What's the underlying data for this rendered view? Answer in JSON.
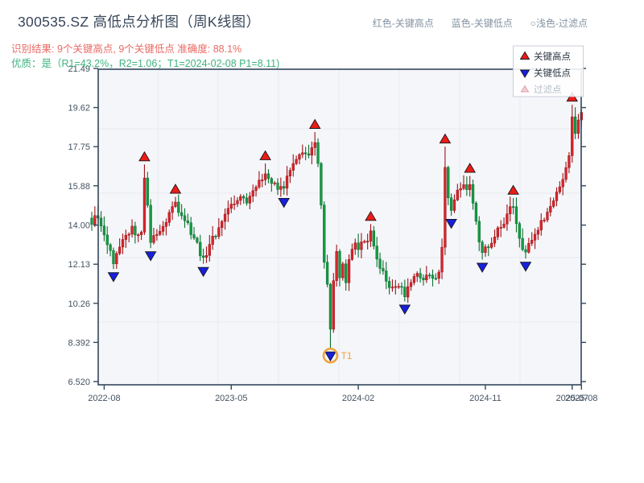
{
  "header": {
    "title": "300535.SZ 高低点分析图（周K线图）",
    "note_red": "红色-关键高点",
    "note_blue": "蓝色-关键低点",
    "note_light": "○浅色-过滤点",
    "result_line": "识别结果: 9个关键高点, 9个关键低点  准确度: 88.1%",
    "quality_line": "优质：是（R1=43.2%，R2=1.06；T1=2024-02-08 P1=8.11)"
  },
  "chart_data": {
    "type": "candlestick",
    "title": "300535.SZ 高低点分析图（周K线图）",
    "y_axis": {
      "range": [
        6.52,
        21.49
      ],
      "tick_values": [
        21.49,
        19.62,
        17.75,
        15.88,
        14.0,
        12.13,
        10.26,
        8.392,
        6.52
      ],
      "tick_labels": [
        "21.49",
        "19.62",
        "17.75",
        "15.88",
        "14.00",
        "12.13",
        "10.26",
        "8.392",
        "6.520"
      ]
    },
    "x_axis": {
      "ticks": [
        {
          "week": 4,
          "label": "2022-08"
        },
        {
          "week": 45,
          "label": "2023-05"
        },
        {
          "week": 86,
          "label": "2024-02"
        },
        {
          "week": 127,
          "label": "2024-11"
        },
        {
          "week": 155,
          "label": "2025-07"
        },
        {
          "week": 158,
          "label": "2025-08"
        }
      ]
    },
    "weeks_total": 159,
    "close_anchors": [
      [
        0,
        14.0
      ],
      [
        1,
        14.5
      ],
      [
        2,
        14.3
      ],
      [
        4,
        13.5
      ],
      [
        7,
        12.1
      ],
      [
        9,
        12.9
      ],
      [
        11,
        13.5
      ],
      [
        13,
        13.9
      ],
      [
        15,
        13.5
      ],
      [
        16,
        13.7
      ],
      [
        17,
        16.3
      ],
      [
        18,
        14.9
      ],
      [
        19,
        13.2
      ],
      [
        21,
        13.6
      ],
      [
        23,
        13.9
      ],
      [
        25,
        14.6
      ],
      [
        27,
        15.1
      ],
      [
        29,
        14.5
      ],
      [
        31,
        14.1
      ],
      [
        33,
        13.4
      ],
      [
        36,
        12.4
      ],
      [
        38,
        13.1
      ],
      [
        40,
        13.5
      ],
      [
        42,
        14.2
      ],
      [
        44,
        14.8
      ],
      [
        46,
        15.0
      ],
      [
        48,
        15.4
      ],
      [
        50,
        15.1
      ],
      [
        52,
        15.7
      ],
      [
        54,
        16.1
      ],
      [
        56,
        16.5
      ],
      [
        58,
        16.0
      ],
      [
        60,
        15.7
      ],
      [
        62,
        15.8
      ],
      [
        64,
        16.6
      ],
      [
        66,
        17.1
      ],
      [
        68,
        17.5
      ],
      [
        70,
        17.3
      ],
      [
        72,
        17.9
      ],
      [
        73,
        17.0
      ],
      [
        74,
        15.0
      ],
      [
        75,
        12.2
      ],
      [
        76,
        11.2
      ],
      [
        77,
        9.0
      ],
      [
        78,
        11.3
      ],
      [
        79,
        12.7
      ],
      [
        80,
        11.5
      ],
      [
        81,
        12.1
      ],
      [
        82,
        11.2
      ],
      [
        83,
        12.3
      ],
      [
        84,
        12.9
      ],
      [
        85,
        13.2
      ],
      [
        86,
        12.8
      ],
      [
        88,
        13.2
      ],
      [
        90,
        13.7
      ],
      [
        91,
        13.0
      ],
      [
        92,
        12.4
      ],
      [
        93,
        11.9
      ],
      [
        95,
        11.3
      ],
      [
        97,
        11.0
      ],
      [
        99,
        11.1
      ],
      [
        101,
        10.6
      ],
      [
        103,
        11.3
      ],
      [
        105,
        11.7
      ],
      [
        107,
        11.4
      ],
      [
        109,
        11.6
      ],
      [
        111,
        11.5
      ],
      [
        112,
        11.8
      ],
      [
        113,
        12.9
      ],
      [
        114,
        16.8
      ],
      [
        115,
        15.3
      ],
      [
        116,
        14.7
      ],
      [
        117,
        15.2
      ],
      [
        118,
        15.7
      ],
      [
        120,
        15.9
      ],
      [
        122,
        15.9
      ],
      [
        123,
        15.1
      ],
      [
        124,
        14.2
      ],
      [
        125,
        13.2
      ],
      [
        126,
        12.7
      ],
      [
        128,
        12.9
      ],
      [
        130,
        13.4
      ],
      [
        132,
        13.9
      ],
      [
        134,
        14.5
      ],
      [
        136,
        14.9
      ],
      [
        137,
        14.1
      ],
      [
        138,
        13.4
      ],
      [
        140,
        12.7
      ],
      [
        142,
        13.3
      ],
      [
        144,
        13.8
      ],
      [
        146,
        14.3
      ],
      [
        148,
        14.9
      ],
      [
        150,
        15.6
      ],
      [
        152,
        16.2
      ],
      [
        153,
        16.8
      ],
      [
        154,
        17.3
      ],
      [
        155,
        19.2
      ],
      [
        156,
        18.4
      ],
      [
        157,
        19.0
      ],
      [
        158,
        19.4
      ]
    ],
    "key_highs": [
      {
        "week": 17,
        "price": 16.9
      },
      {
        "week": 27,
        "price": 15.35
      },
      {
        "week": 56,
        "price": 16.95
      },
      {
        "week": 72,
        "price": 18.45
      },
      {
        "week": 90,
        "price": 14.05
      },
      {
        "week": 114,
        "price": 17.75
      },
      {
        "week": 122,
        "price": 16.35
      },
      {
        "week": 136,
        "price": 15.3
      },
      {
        "week": 155,
        "price": 19.75
      }
    ],
    "key_lows": [
      {
        "week": 7,
        "price": 11.9
      },
      {
        "week": 19,
        "price": 12.9
      },
      {
        "week": 36,
        "price": 12.15
      },
      {
        "week": 62,
        "price": 15.45
      },
      {
        "week": 77,
        "price": 8.11
      },
      {
        "week": 101,
        "price": 10.35
      },
      {
        "week": 116,
        "price": 14.45
      },
      {
        "week": 126,
        "price": 12.35
      },
      {
        "week": 140,
        "price": 12.4
      }
    ],
    "t1_marker": {
      "week": 77,
      "price": 8.11,
      "label": "T1",
      "date": "2024-02-08"
    },
    "in_chart_legend": [
      {
        "label": "关键高点",
        "marker": "triangle-up",
        "color": "#ed1c16",
        "text_color": "#2b3642"
      },
      {
        "label": "关键低点",
        "marker": "triangle-down",
        "color": "#1720dc",
        "text_color": "#2b3642"
      },
      {
        "label": "过滤点",
        "marker": "triangle-up-open",
        "color": "#f6ccd3",
        "text_color": "#b6bfca"
      }
    ],
    "colors": {
      "up": "#d9252b",
      "up_edge": "#9c1218",
      "down": "#159a43",
      "down_edge": "#0a7031",
      "key_high": "#ed1c16",
      "key_low": "#1720dc",
      "marker_edge": "#16161a",
      "t1": "#f0a23c",
      "plot_bg": "#f5f6f9",
      "grid": "#e9ecf2",
      "axis": "#33475c",
      "tick_text": "#425262"
    }
  }
}
